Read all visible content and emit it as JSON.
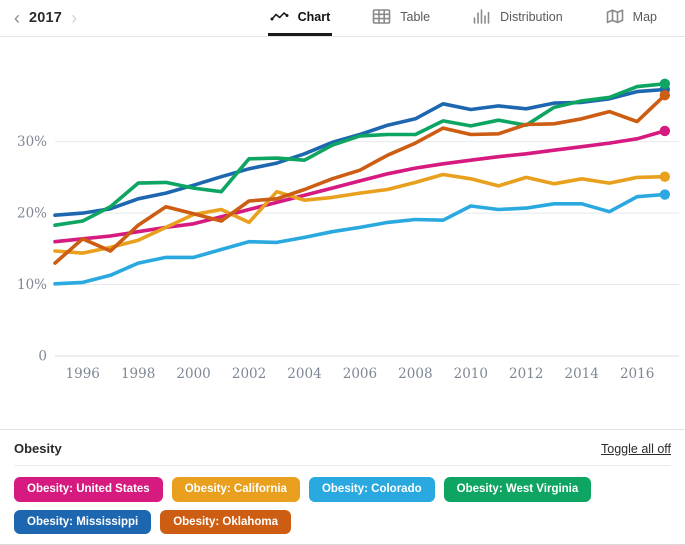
{
  "header": {
    "year_nav": {
      "prev": "‹",
      "year": "2017",
      "next": "›"
    },
    "tabs": [
      {
        "label": "Chart",
        "icon": "line-chart-icon",
        "active": true
      },
      {
        "label": "Table",
        "icon": "table-icon",
        "active": false
      },
      {
        "label": "Distribution",
        "icon": "distribution-icon",
        "active": false
      },
      {
        "label": "Map",
        "icon": "map-icon",
        "active": false
      }
    ]
  },
  "chart_data": {
    "type": "line",
    "title": "",
    "xlabel": "",
    "ylabel": "",
    "years": [
      1995,
      1996,
      1997,
      1998,
      1999,
      2000,
      2001,
      2002,
      2003,
      2004,
      2005,
      2006,
      2007,
      2008,
      2009,
      2010,
      2011,
      2012,
      2013,
      2014,
      2015,
      2016,
      2017
    ],
    "x_tick_labels": [
      "1996",
      "1998",
      "2000",
      "2002",
      "2004",
      "2006",
      "2008",
      "2010",
      "2012",
      "2014",
      "2016"
    ],
    "y_ticks": [
      {
        "value": 0,
        "label": "0"
      },
      {
        "value": 10,
        "label": "10%"
      },
      {
        "value": 20,
        "label": "20%"
      },
      {
        "value": 30,
        "label": "30%"
      }
    ],
    "ylim": [
      0,
      42
    ],
    "grid": "horizontal-light",
    "legend_position": "bottom",
    "series": [
      {
        "name": "Obesity: United States",
        "color": "#d61a7f",
        "values": [
          16.0,
          16.4,
          16.8,
          17.4,
          18.0,
          18.5,
          19.5,
          20.5,
          21.5,
          22.5,
          23.5,
          24.5,
          25.5,
          26.3,
          26.9,
          27.4,
          27.9,
          28.3,
          28.8,
          29.3,
          29.8,
          30.4,
          31.5
        ]
      },
      {
        "name": "Obesity: California",
        "color": "#e8a01e",
        "values": [
          14.7,
          14.4,
          15.2,
          16.2,
          18.0,
          19.8,
          20.5,
          18.7,
          23.0,
          21.8,
          22.2,
          22.8,
          23.3,
          24.3,
          25.4,
          24.8,
          23.8,
          25.0,
          24.1,
          24.8,
          24.2,
          25.0,
          25.1
        ]
      },
      {
        "name": "Obesity: Colorado",
        "color": "#2aa9e0",
        "values": [
          10.1,
          10.3,
          11.3,
          13.0,
          13.8,
          13.8,
          14.9,
          16.0,
          15.9,
          16.6,
          17.4,
          18.0,
          18.7,
          19.1,
          19.0,
          21.0,
          20.5,
          20.7,
          21.3,
          21.3,
          20.2,
          22.3,
          22.6
        ]
      },
      {
        "name": "Obesity: West Virginia",
        "color": "#0ea563",
        "values": [
          18.3,
          18.9,
          20.9,
          24.2,
          24.3,
          23.5,
          23.0,
          27.6,
          27.7,
          27.4,
          29.5,
          30.8,
          31.0,
          31.0,
          32.9,
          32.2,
          33.0,
          32.3,
          34.8,
          35.7,
          36.2,
          37.7,
          38.1
        ]
      },
      {
        "name": "Obesity: Mississippi",
        "color": "#1d67b0",
        "values": [
          19.7,
          20.0,
          20.6,
          22.0,
          22.8,
          23.9,
          25.1,
          26.2,
          27.0,
          28.3,
          29.9,
          31.0,
          32.3,
          33.2,
          35.3,
          34.5,
          35.0,
          34.6,
          35.4,
          35.5,
          36.0,
          37.0,
          37.3
        ]
      },
      {
        "name": "Obesity: Oklahoma",
        "color": "#cc5d12",
        "values": [
          13.0,
          16.4,
          14.7,
          18.3,
          20.9,
          19.9,
          18.9,
          21.7,
          22.0,
          23.3,
          24.8,
          26.0,
          28.1,
          29.8,
          31.9,
          31.0,
          31.1,
          32.4,
          32.5,
          33.2,
          34.2,
          32.8,
          36.5
        ]
      }
    ]
  },
  "legend": {
    "title": "Obesity",
    "toggle_all_label": "Toggle all off"
  }
}
